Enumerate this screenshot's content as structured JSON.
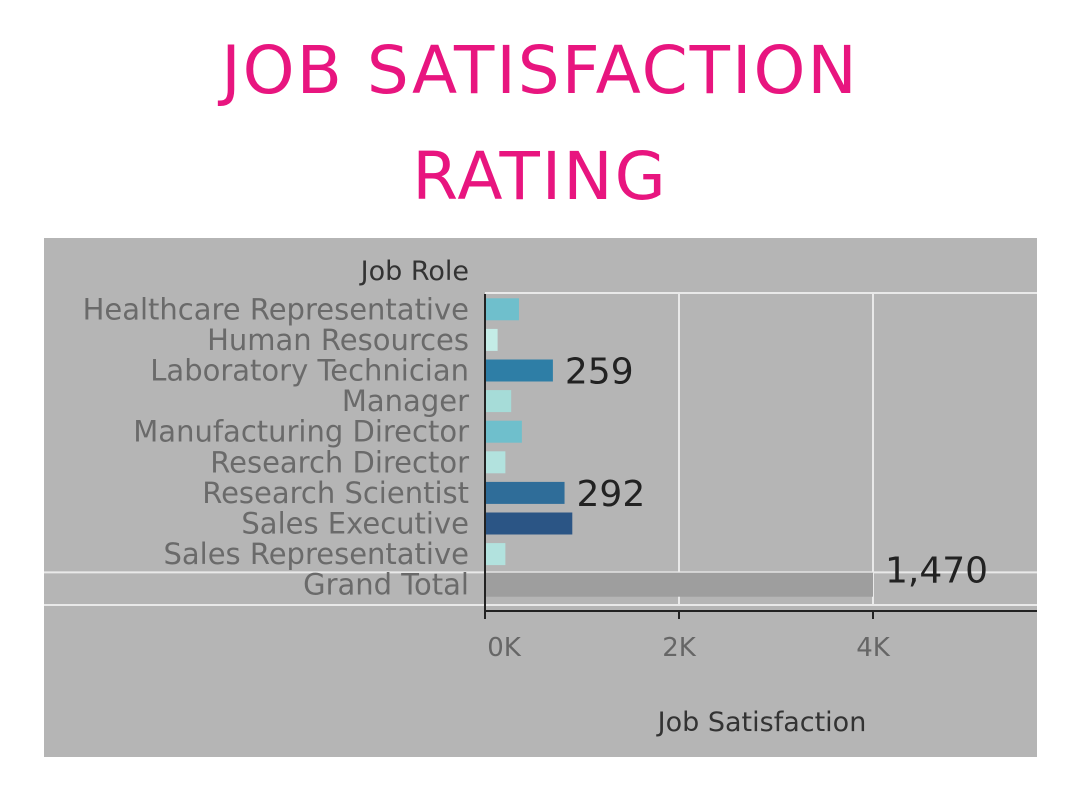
{
  "title": {
    "line1": "JOB SATISFACTION",
    "line2": "RATING"
  },
  "colors": {
    "title": "#e8157f",
    "panel_bg": "#b5b5b5",
    "grand_total_bar": "#9e9e9e",
    "gridline": "#e9e9e9"
  },
  "chart_data": {
    "type": "bar",
    "orientation": "horizontal",
    "row_header": "Job Role",
    "xlabel": "Job Satisfaction",
    "xlim": [
      0,
      5600
    ],
    "x_ticks": [
      {
        "value": 0,
        "label": "0K"
      },
      {
        "value": 2000,
        "label": "2K"
      },
      {
        "value": 4000,
        "label": "4K"
      }
    ],
    "grid": true,
    "categories": [
      "Healthcare Representative",
      "Human Resources",
      "Laboratory Technician",
      "Manager",
      "Manufacturing Director",
      "Research Director",
      "Research Scientist",
      "Sales Executive",
      "Sales Representative",
      "Grand Total"
    ],
    "values": [
      350,
      130,
      700,
      270,
      380,
      210,
      820,
      900,
      210,
      4000
    ],
    "bar_colors": [
      "#6fbfcc",
      "#c4ece6",
      "#2e7ea6",
      "#a6dcd8",
      "#6fbfcc",
      "#b2e2de",
      "#2f6d99",
      "#2b5585",
      "#b2e2de",
      "#9e9e9e"
    ],
    "data_labels": [
      "",
      "",
      "259",
      "",
      "",
      "",
      "292",
      "",
      "",
      "1,470"
    ]
  }
}
